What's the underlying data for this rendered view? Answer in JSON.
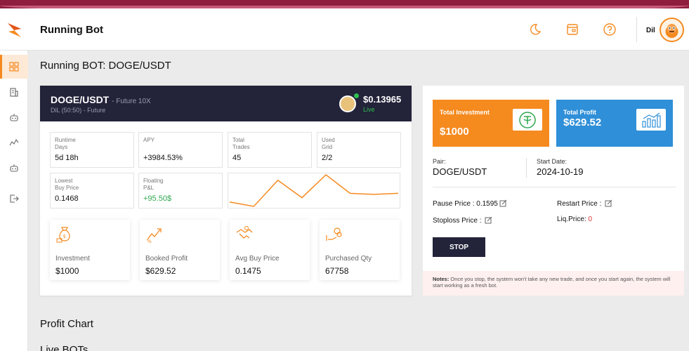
{
  "header": {
    "title": "Running Bot",
    "user_name": "Dil"
  },
  "page": {
    "title": "Running BOT: DOGE/USDT"
  },
  "bot": {
    "pair": "DOGE/USDT",
    "leverage": "- Future 10X",
    "mode": "DiL (50:50) - Future",
    "price": "$0.13965",
    "status": "Live",
    "stats": [
      {
        "label": "Runtime\nDays",
        "value": "5d 18h"
      },
      {
        "label": "APY",
        "value": "+3984.53%"
      },
      {
        "label": "Total\nTrades",
        "value": "45"
      },
      {
        "label": "Used\nGrid",
        "value": "2/2"
      },
      {
        "label": "Lowest\nBuy Price",
        "value": "0.1468"
      },
      {
        "label": "Floating\nP&L",
        "value": "+95.50$"
      }
    ],
    "cards": [
      {
        "label": "Investment",
        "value": "$1000",
        "icon": "money-bag-icon"
      },
      {
        "label": "Booked Profit",
        "value": "$629.52",
        "icon": "growth-icon"
      },
      {
        "label": "Avg Buy Price",
        "value": "0.1475",
        "icon": "handshake-icon"
      },
      {
        "label": "Purchased Qty",
        "value": "67758",
        "icon": "coins-hand-icon"
      }
    ],
    "sparkline": [
      14,
      10,
      34,
      18,
      39,
      22,
      21,
      22
    ]
  },
  "investment": {
    "total_label": "Total Investment",
    "total_value": "$1000",
    "profit_label": "Total Profit",
    "profit_value": "$629.52",
    "pair_label": "Pair:",
    "pair_value": "DOGE/USDT",
    "start_label": "Start Date:",
    "start_value": "2024-10-19",
    "pause_label": "Pause Price : ",
    "pause_value": "0.1595",
    "restart_label": "Restart Price : ",
    "stoploss_label": "Stoploss Price : ",
    "liq_label": "Liq.Price: ",
    "liq_value": "0",
    "stop_button": "STOP",
    "notes_label": "Notes:",
    "notes_text": " Once you stop, the system won't take any new trade, and once you start again, the system will start working as a fresh bot."
  },
  "sections": {
    "profit_chart": "Profit Chart",
    "live_bots": "Live BOTs"
  },
  "colors": {
    "accent": "#f58a1f",
    "dark": "#23233a",
    "blue": "#2f8fd8",
    "green": "#2fa84f",
    "red": "#e03333"
  }
}
